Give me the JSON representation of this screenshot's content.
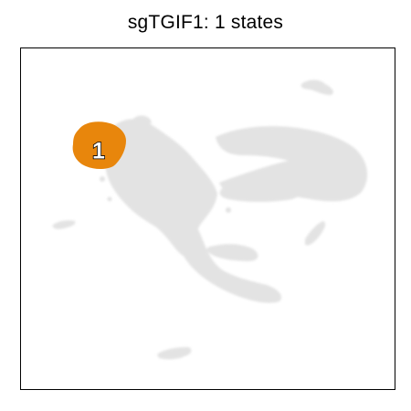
{
  "chart_data": {
    "type": "scatter",
    "title": "sgTGIF1: 1 states",
    "xlabel": "",
    "ylabel": "",
    "grid": false,
    "legend": "none",
    "axes_ticks": false,
    "background_color": "#e3e3e3",
    "highlight_color": "#e8860c",
    "label_text_color": "#ffffff",
    "label_outline_color": "#000000",
    "frame_color": "#000000",
    "states": [
      {
        "label": "1",
        "color": "#e8860c"
      }
    ]
  }
}
